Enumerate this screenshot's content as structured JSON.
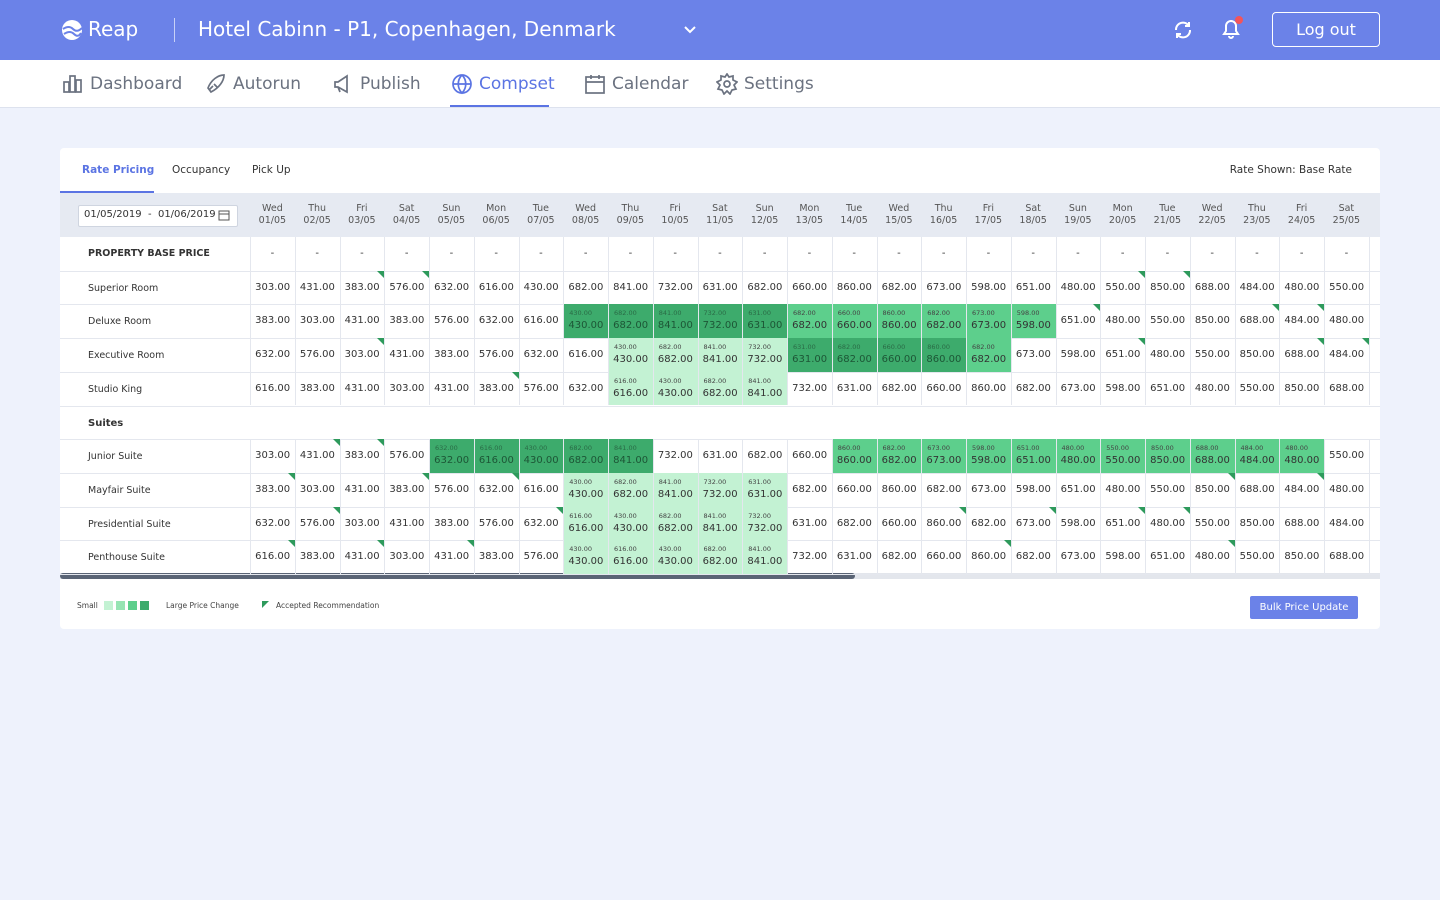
{
  "header": {
    "logo": "Reap",
    "hotel": "Hotel Cabinn - P1, Copenhagen, Denmark",
    "logout": "Log out"
  },
  "nav": {
    "items": [
      "Dashboard",
      "Autorun",
      "Publish",
      "Compset",
      "Calendar",
      "Settings"
    ],
    "active": 3
  },
  "tabs": {
    "items": [
      "Rate Pricing",
      "Occupancy",
      "Pick Up"
    ],
    "active": 0,
    "rate_shown": "Rate Shown: Base Rate"
  },
  "table": {
    "date_range": "01/05/2019  -  01/06/2019",
    "columns": [
      {
        "day": "Wed",
        "date": "01/05"
      },
      {
        "day": "Thu",
        "date": "02/05"
      },
      {
        "day": "Fri",
        "date": "03/05"
      },
      {
        "day": "Sat",
        "date": "04/05"
      },
      {
        "day": "Sun",
        "date": "05/05"
      },
      {
        "day": "Mon",
        "date": "06/05"
      },
      {
        "day": "Tue",
        "date": "07/05"
      },
      {
        "day": "Wed",
        "date": "08/05"
      },
      {
        "day": "Thu",
        "date": "09/05"
      },
      {
        "day": "Fri",
        "date": "10/05"
      },
      {
        "day": "Sat",
        "date": "11/05"
      },
      {
        "day": "Sun",
        "date": "12/05"
      },
      {
        "day": "Mon",
        "date": "13/05"
      },
      {
        "day": "Tue",
        "date": "14/05"
      },
      {
        "day": "Wed",
        "date": "15/05"
      },
      {
        "day": "Thu",
        "date": "16/05"
      },
      {
        "day": "Fri",
        "date": "17/05"
      },
      {
        "day": "Sat",
        "date": "18/05"
      },
      {
        "day": "Sun",
        "date": "19/05"
      },
      {
        "day": "Mon",
        "date": "20/05"
      },
      {
        "day": "Tue",
        "date": "21/05"
      },
      {
        "day": "Wed",
        "date": "22/05"
      },
      {
        "day": "Thu",
        "date": "23/05"
      },
      {
        "day": "Fri",
        "date": "24/05"
      },
      {
        "day": "Sat",
        "date": "25/05"
      }
    ],
    "base_price": {
      "label": "PROPERTY BASE PRICE",
      "values": [
        "-",
        "-",
        "-",
        "-",
        "-",
        "-",
        "-",
        "-",
        "-",
        "-",
        "-",
        "-",
        "-",
        "-",
        "-",
        "-",
        "-",
        "-",
        "-",
        "-",
        "-",
        "-",
        "-",
        "-",
        "-"
      ]
    },
    "groups": [
      {
        "rows": [
          {
            "label": "Superior Room",
            "values": [
              "303.00",
              "431.00",
              "383.00",
              "576.00",
              "632.00",
              "616.00",
              "430.00",
              "682.00",
              "841.00",
              "732.00",
              "631.00",
              "682.00",
              "660.00",
              "860.00",
              "682.00",
              "673.00",
              "598.00",
              "651.00",
              "480.00",
              "550.00",
              "850.00",
              "688.00",
              "484.00",
              "480.00",
              "550.00"
            ],
            "previous": [
              null,
              null,
              null,
              null,
              null,
              null,
              null,
              null,
              null,
              null,
              null,
              null,
              null,
              null,
              null,
              null,
              null,
              null,
              null,
              null,
              null,
              null,
              null,
              null,
              null
            ],
            "level": [
              null,
              null,
              null,
              null,
              null,
              null,
              null,
              null,
              null,
              null,
              null,
              null,
              null,
              null,
              null,
              null,
              null,
              null,
              null,
              null,
              null,
              null,
              null,
              null,
              null
            ],
            "accepted": [
              2,
              3,
              19,
              20
            ]
          },
          {
            "label": "Deluxe Room",
            "values": [
              "383.00",
              "303.00",
              "431.00",
              "383.00",
              "576.00",
              "632.00",
              "616.00",
              "430.00",
              "682.00",
              "841.00",
              "732.00",
              "631.00",
              "682.00",
              "660.00",
              "860.00",
              "682.00",
              "673.00",
              "598.00",
              "651.00",
              "480.00",
              "550.00",
              "850.00",
              "688.00",
              "484.00",
              "480.00"
            ],
            "previous": [
              null,
              null,
              null,
              null,
              null,
              null,
              null,
              "430.00",
              "682.00",
              "841.00",
              "732.00",
              "631.00",
              "682.00",
              "660.00",
              "860.00",
              "682.00",
              "673.00",
              "598.00",
              null,
              null,
              null,
              null,
              null,
              null,
              null
            ],
            "level": [
              null,
              null,
              null,
              null,
              null,
              null,
              null,
              3,
              3,
              3,
              3,
              3,
              2,
              2,
              2,
              2,
              2,
              2,
              null,
              null,
              null,
              null,
              null,
              null,
              null
            ],
            "accepted": [
              18,
              22,
              23
            ]
          },
          {
            "label": "Executive Room",
            "values": [
              "632.00",
              "576.00",
              "303.00",
              "431.00",
              "383.00",
              "576.00",
              "632.00",
              "616.00",
              "430.00",
              "682.00",
              "841.00",
              "732.00",
              "631.00",
              "682.00",
              "660.00",
              "860.00",
              "682.00",
              "673.00",
              "598.00",
              "651.00",
              "480.00",
              "550.00",
              "850.00",
              "688.00",
              "484.00"
            ],
            "previous": [
              null,
              null,
              null,
              null,
              null,
              null,
              null,
              null,
              "430.00",
              "682.00",
              "841.00",
              "732.00",
              "631.00",
              "682.00",
              "660.00",
              "860.00",
              "682.00",
              null,
              null,
              null,
              null,
              null,
              null,
              null,
              null
            ],
            "level": [
              null,
              null,
              null,
              null,
              null,
              null,
              null,
              null,
              0,
              0,
              0,
              0,
              3,
              3,
              3,
              3,
              2,
              null,
              null,
              null,
              null,
              null,
              null,
              null,
              null
            ],
            "accepted": [
              2,
              19,
              23,
              24
            ]
          },
          {
            "label": "Studio King",
            "values": [
              "616.00",
              "383.00",
              "431.00",
              "303.00",
              "431.00",
              "383.00",
              "576.00",
              "632.00",
              "616.00",
              "430.00",
              "682.00",
              "841.00",
              "732.00",
              "631.00",
              "682.00",
              "660.00",
              "860.00",
              "682.00",
              "673.00",
              "598.00",
              "651.00",
              "480.00",
              "550.00",
              "850.00",
              "688.00"
            ],
            "previous": [
              null,
              null,
              null,
              null,
              null,
              null,
              null,
              null,
              "616.00",
              "430.00",
              "682.00",
              "841.00",
              null,
              null,
              null,
              null,
              null,
              null,
              null,
              null,
              null,
              null,
              null,
              null,
              null
            ],
            "level": [
              null,
              null,
              null,
              null,
              null,
              null,
              null,
              null,
              0,
              0,
              0,
              0,
              null,
              null,
              null,
              null,
              null,
              null,
              null,
              null,
              null,
              null,
              null,
              null,
              null
            ],
            "accepted": [
              5
            ]
          }
        ]
      },
      {
        "title": "Suites",
        "rows": [
          {
            "label": "Junior Suite",
            "values": [
              "303.00",
              "431.00",
              "383.00",
              "576.00",
              "632.00",
              "616.00",
              "430.00",
              "682.00",
              "841.00",
              "732.00",
              "631.00",
              "682.00",
              "660.00",
              "860.00",
              "682.00",
              "673.00",
              "598.00",
              "651.00",
              "480.00",
              "550.00",
              "850.00",
              "688.00",
              "484.00",
              "480.00",
              "550.00"
            ],
            "previous": [
              null,
              null,
              null,
              null,
              "632.00",
              "616.00",
              "430.00",
              "682.00",
              "841.00",
              null,
              null,
              null,
              null,
              "860.00",
              "682.00",
              "673.00",
              "598.00",
              "651.00",
              "480.00",
              "550.00",
              "850.00",
              "688.00",
              "484.00",
              "480.00",
              null
            ],
            "level": [
              null,
              null,
              null,
              null,
              3,
              3,
              3,
              3,
              3,
              null,
              null,
              null,
              null,
              2,
              2,
              2,
              2,
              2,
              2,
              2,
              2,
              2,
              2,
              2,
              null
            ],
            "accepted": [
              1,
              2
            ]
          },
          {
            "label": "Mayfair Suite",
            "values": [
              "383.00",
              "303.00",
              "431.00",
              "383.00",
              "576.00",
              "632.00",
              "616.00",
              "430.00",
              "682.00",
              "841.00",
              "732.00",
              "631.00",
              "682.00",
              "660.00",
              "860.00",
              "682.00",
              "673.00",
              "598.00",
              "651.00",
              "480.00",
              "550.00",
              "850.00",
              "688.00",
              "484.00",
              "480.00"
            ],
            "previous": [
              null,
              null,
              null,
              null,
              null,
              null,
              null,
              "430.00",
              "682.00",
              "841.00",
              "732.00",
              "631.00",
              null,
              null,
              null,
              null,
              null,
              null,
              null,
              null,
              null,
              null,
              null,
              null,
              null
            ],
            "level": [
              null,
              null,
              null,
              null,
              null,
              null,
              null,
              0,
              0,
              0,
              0,
              0,
              null,
              null,
              null,
              null,
              null,
              null,
              null,
              null,
              null,
              null,
              null,
              null,
              null
            ],
            "accepted": [
              0,
              3,
              5,
              21,
              23
            ]
          },
          {
            "label": "Presidential Suite",
            "values": [
              "632.00",
              "576.00",
              "303.00",
              "431.00",
              "383.00",
              "576.00",
              "632.00",
              "616.00",
              "430.00",
              "682.00",
              "841.00",
              "732.00",
              "631.00",
              "682.00",
              "660.00",
              "860.00",
              "682.00",
              "673.00",
              "598.00",
              "651.00",
              "480.00",
              "550.00",
              "850.00",
              "688.00",
              "484.00"
            ],
            "previous": [
              null,
              null,
              null,
              null,
              null,
              null,
              null,
              "616.00",
              "430.00",
              "682.00",
              "841.00",
              "732.00",
              null,
              null,
              null,
              null,
              null,
              null,
              null,
              null,
              null,
              null,
              null,
              null,
              null
            ],
            "level": [
              null,
              null,
              null,
              null,
              null,
              null,
              null,
              0,
              0,
              0,
              0,
              0,
              null,
              null,
              null,
              null,
              null,
              null,
              null,
              null,
              null,
              null,
              null,
              null,
              null
            ],
            "accepted": [
              1,
              6,
              15,
              17,
              19,
              20
            ]
          },
          {
            "label": "Penthouse Suite",
            "values": [
              "616.00",
              "383.00",
              "431.00",
              "303.00",
              "431.00",
              "383.00",
              "576.00",
              "430.00",
              "616.00",
              "430.00",
              "682.00",
              "841.00",
              "732.00",
              "631.00",
              "682.00",
              "660.00",
              "860.00",
              "682.00",
              "673.00",
              "598.00",
              "651.00",
              "480.00",
              "550.00",
              "850.00",
              "688.00"
            ],
            "previous": [
              null,
              null,
              null,
              null,
              null,
              null,
              null,
              "430.00",
              "616.00",
              "430.00",
              "682.00",
              "841.00",
              null,
              null,
              null,
              null,
              null,
              null,
              null,
              null,
              null,
              null,
              null,
              null,
              null
            ],
            "level": [
              null,
              null,
              null,
              null,
              null,
              null,
              null,
              0,
              0,
              0,
              0,
              0,
              null,
              null,
              null,
              null,
              null,
              null,
              null,
              null,
              null,
              null,
              null,
              null,
              null
            ],
            "accepted": [
              0,
              2,
              4,
              16,
              21
            ]
          }
        ]
      }
    ]
  },
  "legend": {
    "small": "Small",
    "swatches": [
      "#c3f2d3",
      "#96e4b3",
      "#5dcf8c",
      "#3dab6c"
    ],
    "large": "Large Price Change",
    "accepted": "Accepted Recommendation",
    "accepted_color": "#2e9a5c"
  },
  "bulk_button": "Bulk Price Update"
}
